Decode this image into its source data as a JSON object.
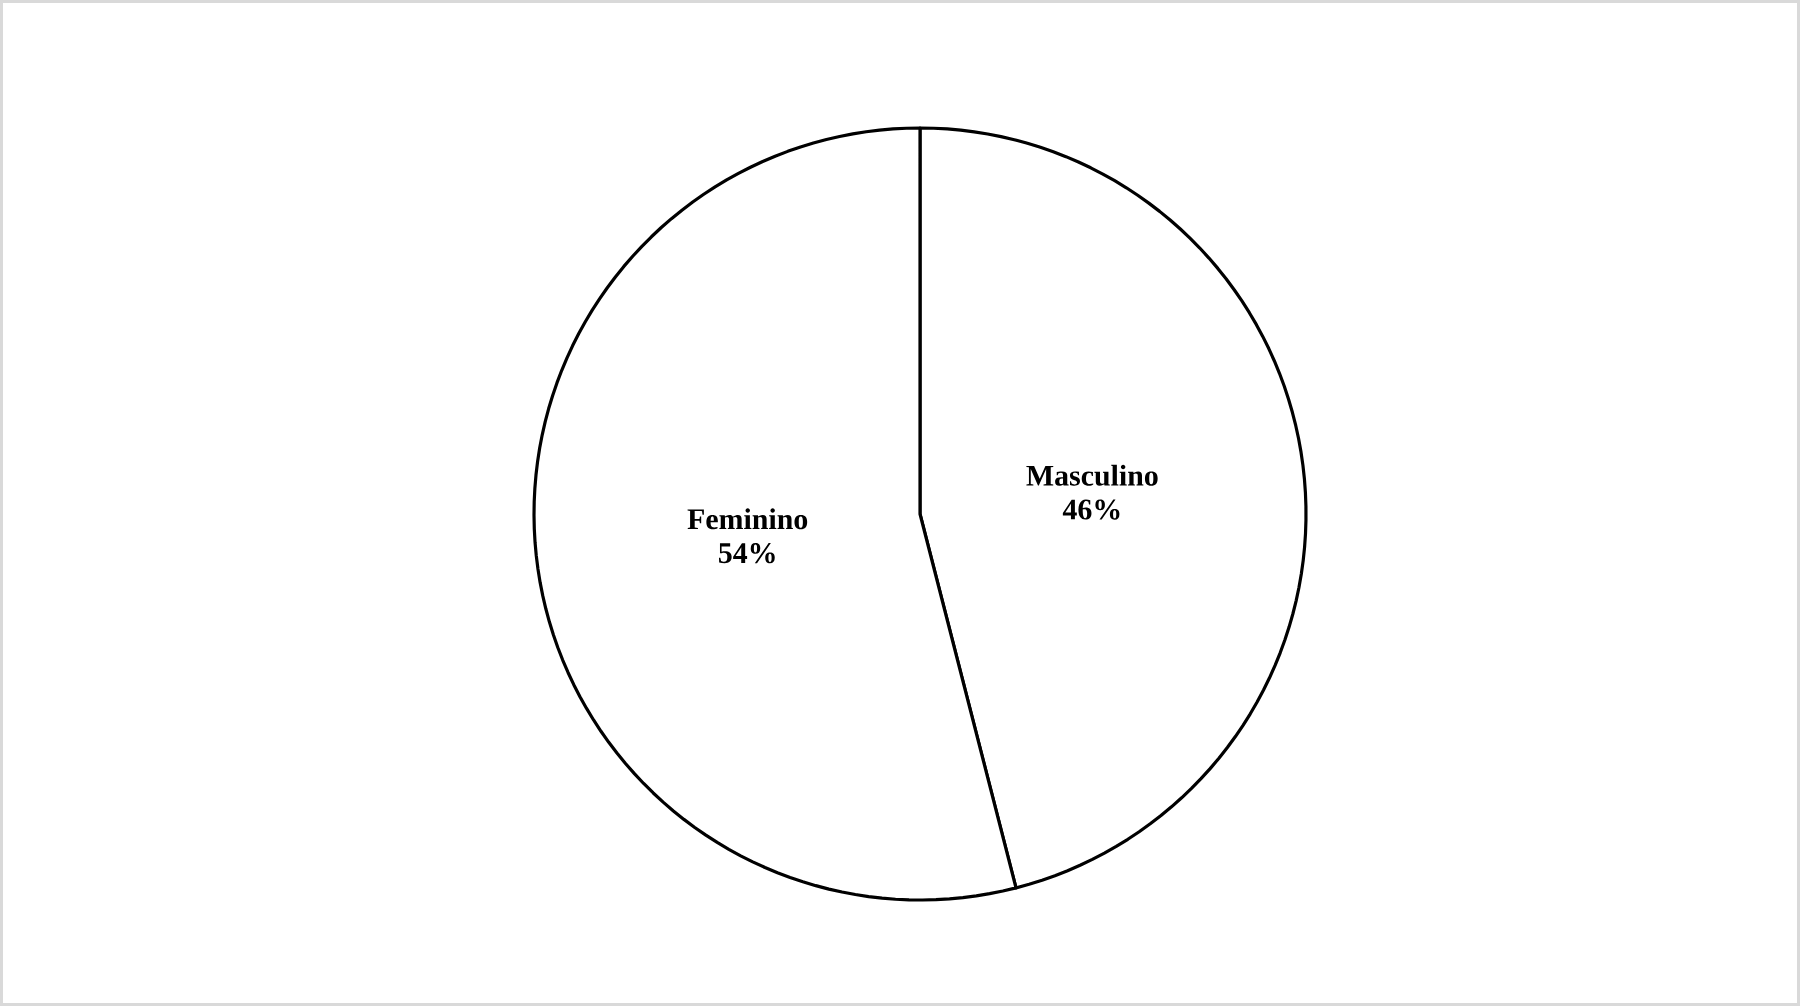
{
  "chart_data": {
    "type": "pie",
    "categories": [
      "Masculino",
      "Feminino"
    ],
    "values": [
      46,
      54
    ],
    "value_labels": [
      "46%",
      "54%"
    ],
    "colors": [
      "#ffffff",
      "#ffffff"
    ]
  }
}
